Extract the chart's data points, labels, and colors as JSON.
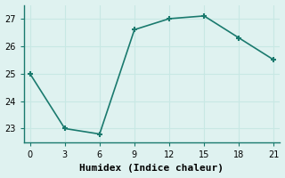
{
  "x": [
    0,
    3,
    6,
    9,
    12,
    15,
    18,
    21
  ],
  "y": [
    25.0,
    23.0,
    22.8,
    26.6,
    27.0,
    27.1,
    26.3,
    25.5
  ],
  "line_color": "#1a7a6e",
  "marker": "+",
  "marker_size": 5,
  "marker_ew": 1.5,
  "bg_color": "#dff2f0",
  "grid_color": "#c8e8e4",
  "xlabel": "Humidex (Indice chaleur)",
  "xlim": [
    -0.5,
    21.5
  ],
  "ylim": [
    22.5,
    27.5
  ],
  "xticks": [
    0,
    3,
    6,
    9,
    12,
    15,
    18,
    21
  ],
  "yticks": [
    23,
    24,
    25,
    26,
    27
  ],
  "xlabel_fontsize": 8,
  "tick_fontsize": 7,
  "linewidth": 1.2,
  "spine_color": "#1a7a6e"
}
